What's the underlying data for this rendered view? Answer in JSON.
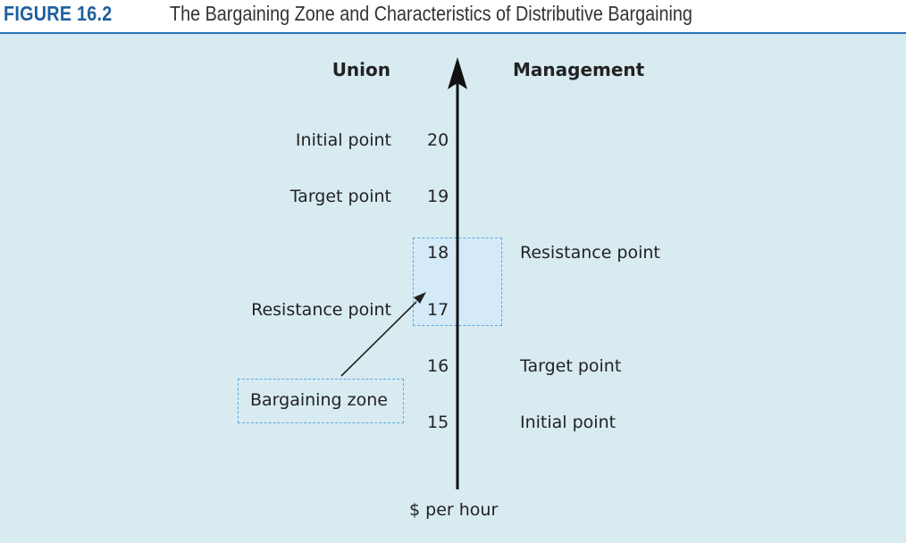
{
  "figure": {
    "label": "FIGURE 16.2",
    "title": "The Bargaining Zone and Characteristics of Distributive Bargaining"
  },
  "diagram": {
    "left_header": "Union",
    "right_header": "Management",
    "axis_label": "$ per hour",
    "ticks": [
      "20",
      "19",
      "18",
      "17",
      "16",
      "15"
    ],
    "union_points": {
      "initial": "Initial point",
      "target": "Target point",
      "resistance": "Resistance point"
    },
    "management_points": {
      "resistance": "Resistance point",
      "target": "Target point",
      "initial": "Initial point"
    },
    "bargaining_zone_label": "Bargaining zone"
  },
  "colors": {
    "figure_label": "#1f5f9e",
    "header_rule": "#2a74b5",
    "panel_background": "#d8ebf1",
    "zone_fill": "#d4eaf8",
    "zone_border": "#5aaadd",
    "axis": "#111111"
  }
}
